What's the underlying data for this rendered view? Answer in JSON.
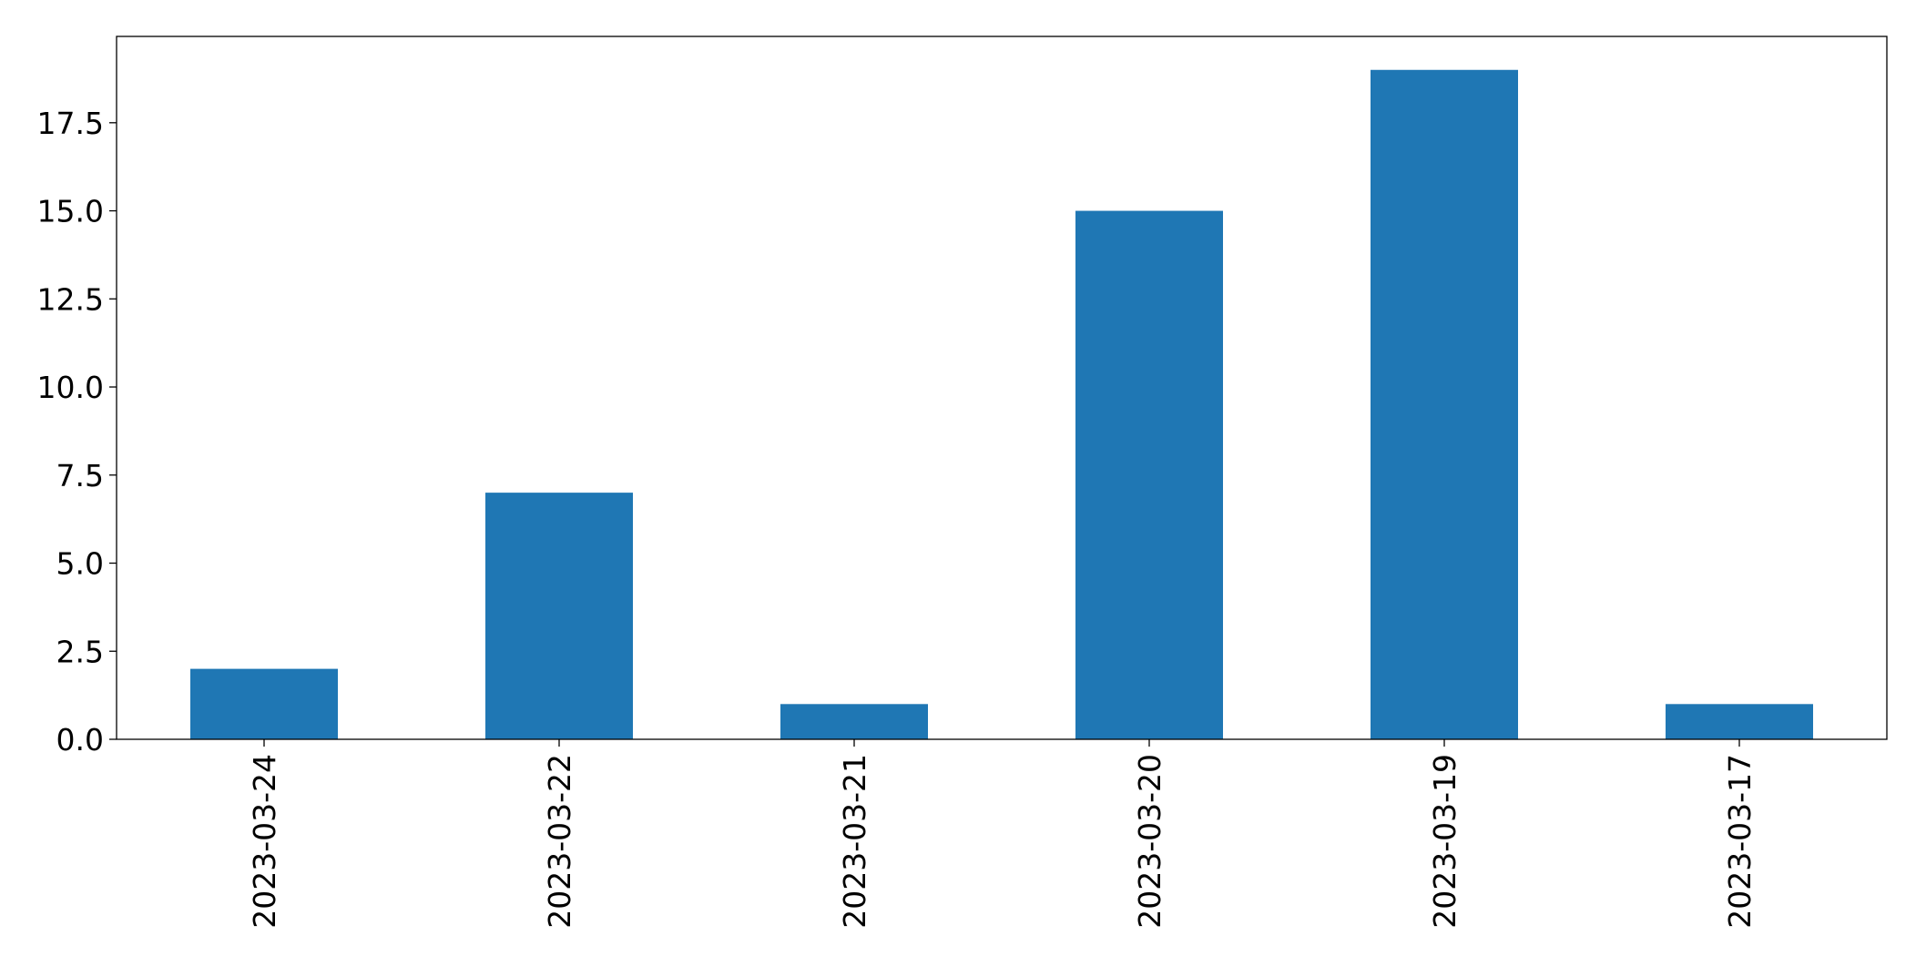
{
  "chart_data": {
    "type": "bar",
    "title": "",
    "xlabel": "",
    "ylabel": "",
    "categories": [
      "2023-03-24",
      "2023-03-22",
      "2023-03-21",
      "2023-03-20",
      "2023-03-19",
      "2023-03-17"
    ],
    "values": [
      2,
      7,
      1,
      15,
      19,
      1
    ],
    "ylim": [
      0,
      19.95
    ],
    "yticks": [
      0.0,
      2.5,
      5.0,
      7.5,
      10.0,
      12.5,
      15.0,
      17.5
    ],
    "ytick_labels": [
      "0.0",
      "2.5",
      "5.0",
      "7.5",
      "10.0",
      "12.5",
      "15.0",
      "17.5"
    ],
    "bar_color": "#1f77b4",
    "grid": false,
    "legend": "none"
  }
}
